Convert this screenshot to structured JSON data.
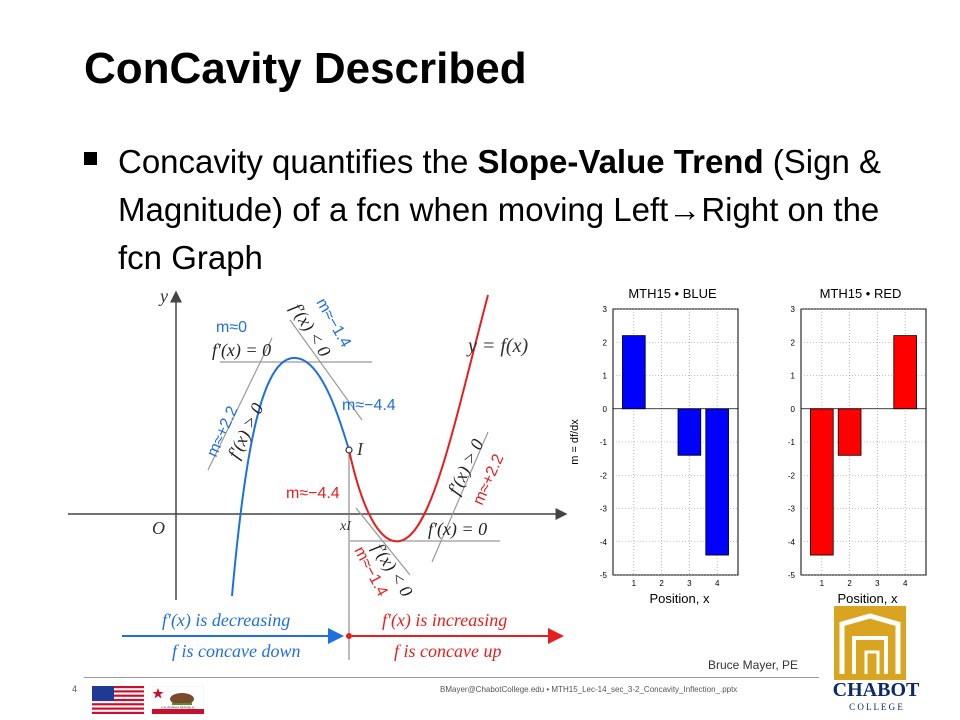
{
  "slide": {
    "title": "ConCavity Described",
    "bullet": {
      "part1": "Concavity quantifies the ",
      "bold1": "Slope-Value Trend",
      "part2": " (Sign & Magnitude) of a fcn when moving Left",
      "arrow": "→",
      "part3": "Right on the fcn Graph"
    }
  },
  "graph": {
    "y_axis": "y",
    "origin": "O",
    "inflection": "I",
    "x_inflection": "xI",
    "function_label": "y = f(x)",
    "tangent_labels": {
      "zero_slope": "f′(x) = 0",
      "pos_left": "f′(x) > 0",
      "neg_upper": "f′(x) < 0",
      "pos_right": "f′(x) > 0",
      "neg_lower": "f′(x) < 0",
      "zero_right": "f′(x) = 0"
    },
    "slope_labels": {
      "m_zero": "m≈0",
      "m_up_left": "m≈+2.2",
      "m_down_upper": "m≈−1.4",
      "m_inflect_blue": "m≈−4.4",
      "m_inflect_red": "m≈−4.4",
      "m_up_right": "m≈+2.2",
      "m_down_lower": "m≈−1.4"
    },
    "bottom": {
      "left_deriv": "f′(x) is decreasing",
      "left_fn": "f is concave down",
      "right_deriv": "f′(x) is increasing",
      "right_fn": "f is concave up"
    },
    "colors": {
      "blue": "#1e6fe0",
      "red": "#e61e1e"
    }
  },
  "chart_data": [
    {
      "type": "bar",
      "title": "MTH15 • BLUE",
      "categories": [
        "1",
        "2",
        "3",
        "4"
      ],
      "values": [
        2.2,
        0,
        -1.4,
        -4.4
      ],
      "xlabel": "Position, x",
      "ylabel": "m = df/dx",
      "ylim": [
        -5,
        3
      ],
      "yticks": [
        "3",
        "2",
        "1",
        "0",
        "-1",
        "-2",
        "-3",
        "-4",
        "-5"
      ],
      "color": "#0000ff",
      "grid": true
    },
    {
      "type": "bar",
      "title": "MTH15 • RED",
      "categories": [
        "1",
        "2",
        "3",
        "4"
      ],
      "values": [
        -4.4,
        -1.4,
        0,
        2.2
      ],
      "xlabel": "Position, x",
      "ylabel": "",
      "ylim": [
        -5,
        3
      ],
      "yticks": [
        "3",
        "2",
        "1",
        "0",
        "-1",
        "-2",
        "-3",
        "-4",
        "-5"
      ],
      "color": "#ff0000",
      "grid": true
    }
  ],
  "footer": {
    "page_number": "4",
    "info": "BMayer@ChabotCollege.edu • MTH15_Lec-14_sec_3-2_Concavity_Inflection_.pptx",
    "author": "Bruce Mayer, PE",
    "logo_text": "CHABOT",
    "logo_subtext": "C O L L E G E",
    "flag_state_text": "CALIFORNIA REPUBLIC"
  }
}
